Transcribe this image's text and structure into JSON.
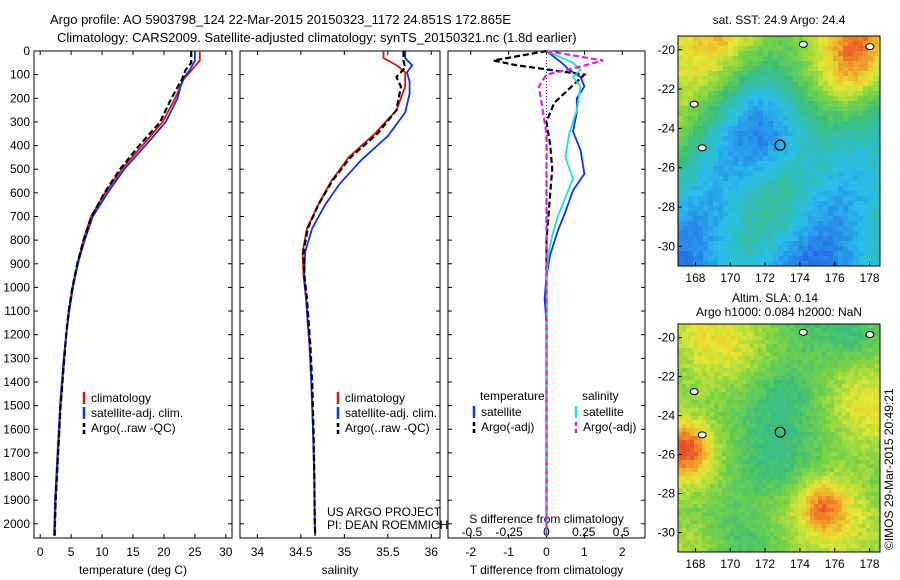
{
  "header": {
    "line1": "Argo profile: AO 5903798_124 22-Mar-2015 20150323_1172 24.851S 172.865E",
    "line2": "Climatology: CARS2009. Satellite-adjusted climatology: synTS_20150321.nc (1.8d earlier)"
  },
  "project_note": {
    "line1": "US ARGO PROJECT",
    "line2": "PI: DEAN ROEMMICH"
  },
  "stamp": "©IMOS 29-Mar-2015 20:49:21",
  "colors": {
    "climatology": "#dd1111",
    "satellite": "#1133dd",
    "argo": "#000000",
    "sat_s": "#22dddd",
    "argo_s": "#dd22dd"
  },
  "chart_data": [
    {
      "type": "line",
      "id": "temperature",
      "xlabel": "temperature (deg C)",
      "xlim": [
        -1,
        31
      ],
      "ylim": [
        2060,
        0
      ],
      "xticks": [
        0,
        5,
        10,
        15,
        20,
        25,
        30
      ],
      "yticks": [
        0,
        100,
        200,
        300,
        400,
        500,
        600,
        700,
        800,
        900,
        1000,
        1100,
        1200,
        1300,
        1400,
        1500,
        1600,
        1700,
        1800,
        1900,
        2000
      ],
      "legend": {
        "position": "middle-left",
        "entries": [
          "climatology",
          "satellite-adj. clim.",
          "Argo(..raw -QC)"
        ]
      },
      "series": [
        {
          "name": "climatology",
          "color_key": "climatology",
          "dash": false,
          "points": [
            [
              25.8,
              0
            ],
            [
              25.8,
              40
            ],
            [
              24.5,
              80
            ],
            [
              23.2,
              120
            ],
            [
              21.8,
              200
            ],
            [
              19.8,
              300
            ],
            [
              16.5,
              400
            ],
            [
              13.2,
              500
            ],
            [
              10.5,
              600
            ],
            [
              8.2,
              700
            ],
            [
              7.0,
              800
            ],
            [
              6.0,
              900
            ],
            [
              5.2,
              1000
            ],
            [
              4.6,
              1100
            ],
            [
              4.2,
              1200
            ],
            [
              3.9,
              1300
            ],
            [
              3.6,
              1400
            ],
            [
              3.3,
              1500
            ],
            [
              3.1,
              1600
            ],
            [
              2.9,
              1700
            ],
            [
              2.7,
              1800
            ],
            [
              2.5,
              1900
            ],
            [
              2.4,
              2000
            ],
            [
              2.35,
              2050
            ]
          ]
        },
        {
          "name": "satellite-adj. clim.",
          "color_key": "satellite",
          "dash": false,
          "points": [
            [
              25.0,
              0
            ],
            [
              25.0,
              40
            ],
            [
              24.2,
              80
            ],
            [
              23.0,
              120
            ],
            [
              22.2,
              200
            ],
            [
              20.3,
              300
            ],
            [
              17.0,
              400
            ],
            [
              13.6,
              500
            ],
            [
              10.9,
              600
            ],
            [
              8.5,
              700
            ],
            [
              7.2,
              800
            ],
            [
              6.1,
              900
            ],
            [
              5.3,
              1000
            ],
            [
              4.7,
              1100
            ],
            [
              4.2,
              1200
            ],
            [
              3.8,
              1300
            ],
            [
              3.5,
              1400
            ],
            [
              3.2,
              1500
            ],
            [
              3.0,
              1600
            ],
            [
              2.8,
              1700
            ],
            [
              2.6,
              1800
            ],
            [
              2.4,
              1900
            ],
            [
              2.3,
              2000
            ],
            [
              2.25,
              2050
            ]
          ]
        },
        {
          "name": "Argo(..raw -QC)",
          "color_key": "argo",
          "dash": true,
          "points": [
            [
              24.4,
              0
            ],
            [
              24.4,
              50
            ],
            [
              23.5,
              80
            ],
            [
              22.9,
              120
            ],
            [
              21.2,
              200
            ],
            [
              19.4,
              300
            ],
            [
              16.0,
              400
            ],
            [
              12.9,
              500
            ],
            [
              10.4,
              600
            ],
            [
              8.3,
              700
            ],
            [
              7.0,
              800
            ],
            [
              6.0,
              900
            ],
            [
              5.2,
              1000
            ],
            [
              4.6,
              1100
            ],
            [
              4.2,
              1200
            ],
            [
              3.9,
              1300
            ],
            [
              3.6,
              1400
            ],
            [
              3.3,
              1500
            ],
            [
              3.1,
              1600
            ],
            [
              2.9,
              1700
            ],
            [
              2.7,
              1800
            ],
            [
              2.5,
              1900
            ],
            [
              2.4,
              2000
            ],
            [
              2.35,
              2050
            ]
          ]
        }
      ]
    },
    {
      "type": "line",
      "id": "salinity",
      "xlabel": "salinity",
      "xlim": [
        33.8,
        36.1
      ],
      "ylim": [
        2060,
        0
      ],
      "xticks": [
        34,
        34.5,
        35,
        35.5,
        36
      ],
      "legend": {
        "position": "middle-right",
        "entries": [
          "climatology",
          "satellite-adj. clim.",
          "Argo(..raw -QC)"
        ]
      },
      "series": [
        {
          "name": "climatology",
          "color_key": "climatology",
          "dash": false,
          "points": [
            [
              35.45,
              0
            ],
            [
              35.45,
              30
            ],
            [
              35.6,
              60
            ],
            [
              35.7,
              90
            ],
            [
              35.7,
              150
            ],
            [
              35.6,
              250
            ],
            [
              35.35,
              350
            ],
            [
              35.05,
              450
            ],
            [
              34.85,
              550
            ],
            [
              34.7,
              650
            ],
            [
              34.57,
              750
            ],
            [
              34.52,
              850
            ],
            [
              34.53,
              950
            ],
            [
              34.56,
              1050
            ],
            [
              34.58,
              1150
            ],
            [
              34.6,
              1250
            ],
            [
              34.62,
              1400
            ],
            [
              34.64,
              1600
            ],
            [
              34.655,
              1800
            ],
            [
              34.66,
              2000
            ],
            [
              34.665,
              2050
            ]
          ]
        },
        {
          "name": "satellite-adj. clim.",
          "color_key": "satellite",
          "dash": false,
          "points": [
            [
              35.7,
              0
            ],
            [
              35.7,
              30
            ],
            [
              35.78,
              60
            ],
            [
              35.72,
              90
            ],
            [
              35.75,
              130
            ],
            [
              35.75,
              180
            ],
            [
              35.7,
              260
            ],
            [
              35.5,
              360
            ],
            [
              35.2,
              460
            ],
            [
              34.95,
              560
            ],
            [
              34.78,
              650
            ],
            [
              34.63,
              750
            ],
            [
              34.55,
              850
            ],
            [
              34.54,
              950
            ],
            [
              34.56,
              1050
            ],
            [
              34.58,
              1150
            ],
            [
              34.6,
              1250
            ],
            [
              34.62,
              1400
            ],
            [
              34.64,
              1600
            ],
            [
              34.655,
              1800
            ],
            [
              34.66,
              2000
            ],
            [
              34.665,
              2050
            ]
          ]
        },
        {
          "name": "Argo(..raw -QC)",
          "color_key": "argo",
          "dash": true,
          "points": [
            [
              35.68,
              0
            ],
            [
              35.68,
              40
            ],
            [
              35.7,
              70
            ],
            [
              35.6,
              110
            ],
            [
              35.65,
              150
            ],
            [
              35.6,
              250
            ],
            [
              35.38,
              350
            ],
            [
              35.07,
              450
            ],
            [
              34.86,
              550
            ],
            [
              34.7,
              650
            ],
            [
              34.58,
              750
            ],
            [
              34.53,
              850
            ],
            [
              34.54,
              950
            ],
            [
              34.57,
              1050
            ],
            [
              34.59,
              1150
            ],
            [
              34.61,
              1250
            ],
            [
              34.63,
              1400
            ],
            [
              34.645,
              1600
            ],
            [
              34.655,
              1800
            ],
            [
              34.66,
              2000
            ],
            [
              34.665,
              2050
            ]
          ]
        }
      ]
    },
    {
      "type": "line",
      "id": "difference",
      "xlabel_bottom": "T difference from climatology",
      "xlabel_top": "S difference from climatology",
      "xlim": [
        -2.6,
        2.6
      ],
      "ylim": [
        2060,
        0
      ],
      "xticks_bottom": [
        -2,
        -1,
        0,
        1,
        2
      ],
      "xticks_top": [
        {
          "label": "-0.5",
          "value": -1.97
        },
        {
          "label": "-0.25",
          "value": -0.985
        },
        {
          "label": "0",
          "value": 0
        },
        {
          "label": "0.25",
          "value": 0.985
        },
        {
          "label": "0.5",
          "value": 1.97
        }
      ],
      "legend": {
        "position": "middle",
        "group_titles": [
          "temperature",
          "salinity"
        ],
        "entries": [
          "satellite",
          "Argo(-adj)",
          "satellite",
          "Argo(-adj)"
        ]
      },
      "series": [
        {
          "name": "satellite",
          "group": "temperature",
          "color_key": "satellite",
          "dash": false,
          "points": [
            [
              0,
              0
            ],
            [
              0.4,
              50
            ],
            [
              0.6,
              80
            ],
            [
              0.9,
              110
            ],
            [
              1.0,
              150
            ],
            [
              0.8,
              200
            ],
            [
              0.8,
              260
            ],
            [
              0.7,
              340
            ],
            [
              0.9,
              420
            ],
            [
              1.0,
              520
            ],
            [
              0.7,
              590
            ],
            [
              0.5,
              680
            ],
            [
              0.3,
              760
            ],
            [
              0.1,
              860
            ],
            [
              0.0,
              950
            ],
            [
              -0.05,
              1050
            ],
            [
              0,
              1150
            ],
            [
              0,
              1400
            ],
            [
              0,
              2050
            ]
          ]
        },
        {
          "name": "Argo(-adj)",
          "group": "temperature",
          "color_key": "argo",
          "dash": true,
          "points": [
            [
              0,
              0
            ],
            [
              -1.4,
              40
            ],
            [
              -0.8,
              60
            ],
            [
              1.0,
              100
            ],
            [
              0.6,
              160
            ],
            [
              0.2,
              220
            ],
            [
              0.0,
              300
            ],
            [
              0.1,
              400
            ],
            [
              0.15,
              500
            ],
            [
              0.1,
              600
            ],
            [
              0.05,
              700
            ],
            [
              0.0,
              800
            ],
            [
              0,
              900
            ],
            [
              0,
              1000
            ],
            [
              0,
              2050
            ]
          ]
        },
        {
          "name": "satellite",
          "group": "salinity",
          "color_key": "sat_s",
          "dash": false,
          "points": [
            [
              0,
              0
            ],
            [
              0.7,
              50
            ],
            [
              0.9,
              80
            ],
            [
              0.7,
              110
            ],
            [
              0.9,
              150
            ],
            [
              0.8,
              250
            ],
            [
              0.6,
              350
            ],
            [
              0.5,
              450
            ],
            [
              0.7,
              540
            ],
            [
              0.5,
              620
            ],
            [
              0.3,
              700
            ],
            [
              0.15,
              780
            ],
            [
              0.05,
              860
            ],
            [
              0.0,
              950
            ],
            [
              0,
              1050
            ],
            [
              0,
              2050
            ]
          ]
        },
        {
          "name": "Argo(-adj)",
          "group": "salinity",
          "color_key": "argo_s",
          "dash": true,
          "points": [
            [
              0,
              0
            ],
            [
              1.5,
              40
            ],
            [
              0.8,
              70
            ],
            [
              0,
              100
            ],
            [
              -0.2,
              150
            ],
            [
              -0.1,
              250
            ],
            [
              0,
              350
            ],
            [
              0,
              450
            ],
            [
              0,
              550
            ],
            [
              0,
              650
            ],
            [
              0,
              2050
            ]
          ]
        }
      ]
    },
    {
      "type": "heatmap",
      "id": "sst-map",
      "title": "sat. SST: 24.9 Argo: 24.4",
      "xlim": [
        167,
        178.6
      ],
      "ylim": [
        -31,
        -19.3
      ],
      "xticks": [
        168,
        170,
        172,
        174,
        176,
        178
      ],
      "yticks": [
        -20,
        -22,
        -24,
        -26,
        -28,
        -30
      ],
      "argo_location": [
        172.865,
        -24.851
      ]
    },
    {
      "type": "heatmap",
      "id": "sla-map",
      "title_line1": "Altim. SLA: 0.14",
      "title_line2": "Argo h1000: 0.084 h2000: NaN",
      "xlim": [
        167,
        178.6
      ],
      "ylim": [
        -31,
        -19.3
      ],
      "xticks": [
        168,
        170,
        172,
        174,
        176,
        178
      ],
      "yticks": [
        -20,
        -22,
        -24,
        -26,
        -28,
        -30
      ],
      "argo_location": [
        172.865,
        -24.851
      ]
    }
  ]
}
